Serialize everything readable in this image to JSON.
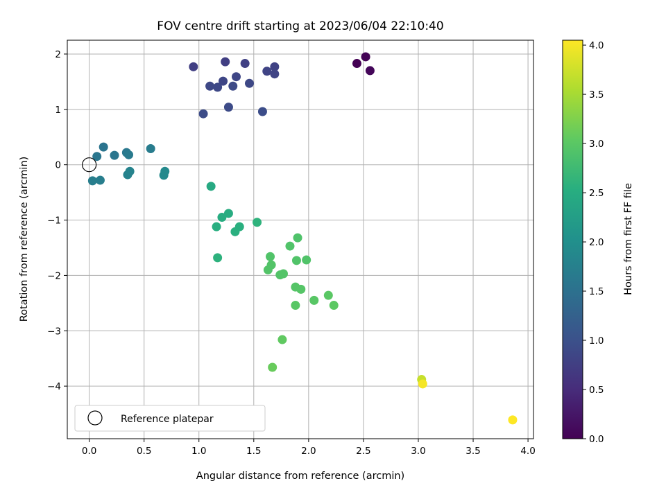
{
  "chart_data": {
    "type": "scatter",
    "title": "FOV centre drift starting at 2023/06/04 22:10:40",
    "xlabel": "Angular distance from reference (arcmin)",
    "ylabel": "Rotation from reference (arcmin)",
    "xlim": [
      -0.2,
      4.05
    ],
    "ylim": [
      -4.95,
      2.25
    ],
    "xticks": [
      0.0,
      0.5,
      1.0,
      1.5,
      2.0,
      2.5,
      3.0,
      3.5,
      4.0
    ],
    "xtick_labels": [
      "0.0",
      "0.5",
      "1.0",
      "1.5",
      "2.0",
      "2.5",
      "3.0",
      "3.5",
      "4.0"
    ],
    "yticks": [
      2,
      1,
      0,
      -1,
      -2,
      -3,
      -4
    ],
    "ytick_labels": [
      "2",
      "1",
      "0",
      "−1",
      "−2",
      "−3",
      "−4"
    ],
    "grid": true,
    "legend": {
      "placement": "lower-left",
      "entries": [
        "Reference platepar"
      ]
    },
    "reference_point": {
      "x": 0.0,
      "y": 0.0
    },
    "colorbar": {
      "label": "Hours from first FF file",
      "range": [
        0.0,
        4.05
      ],
      "ticks": [
        0.0,
        0.5,
        1.0,
        1.5,
        2.0,
        2.5,
        3.0,
        3.5,
        4.0
      ],
      "tick_labels": [
        "0.0",
        "0.5",
        "1.0",
        "1.5",
        "2.0",
        "2.5",
        "3.0",
        "3.5",
        "4.0"
      ],
      "colormap": "viridis"
    },
    "points": [
      {
        "x": 2.44,
        "y": 1.83,
        "h": 0.0
      },
      {
        "x": 2.52,
        "y": 1.95,
        "h": 0.03
      },
      {
        "x": 2.56,
        "y": 1.7,
        "h": 0.06
      },
      {
        "x": 0.95,
        "y": 1.77,
        "h": 0.75
      },
      {
        "x": 1.24,
        "y": 1.86,
        "h": 0.75
      },
      {
        "x": 1.42,
        "y": 1.83,
        "h": 0.78
      },
      {
        "x": 1.69,
        "y": 1.77,
        "h": 0.8
      },
      {
        "x": 1.62,
        "y": 1.69,
        "h": 0.82
      },
      {
        "x": 1.69,
        "y": 1.64,
        "h": 0.82
      },
      {
        "x": 1.34,
        "y": 1.59,
        "h": 0.85
      },
      {
        "x": 1.22,
        "y": 1.51,
        "h": 0.85
      },
      {
        "x": 1.46,
        "y": 1.47,
        "h": 0.87
      },
      {
        "x": 1.1,
        "y": 1.42,
        "h": 0.87
      },
      {
        "x": 1.17,
        "y": 1.4,
        "h": 0.88
      },
      {
        "x": 1.31,
        "y": 1.42,
        "h": 0.9
      },
      {
        "x": 1.27,
        "y": 1.04,
        "h": 0.92
      },
      {
        "x": 1.04,
        "y": 0.92,
        "h": 0.93
      },
      {
        "x": 1.58,
        "y": 0.96,
        "h": 0.95
      },
      {
        "x": 0.13,
        "y": 0.32,
        "h": 1.55
      },
      {
        "x": 0.07,
        "y": 0.15,
        "h": 1.58
      },
      {
        "x": 0.23,
        "y": 0.17,
        "h": 1.58
      },
      {
        "x": 0.34,
        "y": 0.22,
        "h": 1.62
      },
      {
        "x": 0.36,
        "y": 0.18,
        "h": 1.65
      },
      {
        "x": 0.56,
        "y": 0.29,
        "h": 1.68
      },
      {
        "x": 0.03,
        "y": -0.29,
        "h": 1.72
      },
      {
        "x": 0.1,
        "y": -0.28,
        "h": 1.72
      },
      {
        "x": 0.35,
        "y": -0.18,
        "h": 1.78
      },
      {
        "x": 0.37,
        "y": -0.12,
        "h": 1.8
      },
      {
        "x": 0.69,
        "y": -0.12,
        "h": 1.9
      },
      {
        "x": 0.68,
        "y": -0.19,
        "h": 1.9
      },
      {
        "x": 1.11,
        "y": -0.39,
        "h": 2.45
      },
      {
        "x": 1.27,
        "y": -0.88,
        "h": 2.5
      },
      {
        "x": 1.21,
        "y": -0.95,
        "h": 2.5
      },
      {
        "x": 1.16,
        "y": -1.12,
        "h": 2.53
      },
      {
        "x": 1.37,
        "y": -1.12,
        "h": 2.55
      },
      {
        "x": 1.33,
        "y": -1.21,
        "h": 2.55
      },
      {
        "x": 1.53,
        "y": -1.04,
        "h": 2.6
      },
      {
        "x": 1.17,
        "y": -1.68,
        "h": 2.58
      },
      {
        "x": 1.9,
        "y": -1.32,
        "h": 2.9
      },
      {
        "x": 1.83,
        "y": -1.47,
        "h": 2.92
      },
      {
        "x": 1.65,
        "y": -1.66,
        "h": 2.92
      },
      {
        "x": 1.89,
        "y": -1.73,
        "h": 2.92
      },
      {
        "x": 1.98,
        "y": -1.72,
        "h": 2.92
      },
      {
        "x": 1.66,
        "y": -1.81,
        "h": 2.93
      },
      {
        "x": 1.63,
        "y": -1.9,
        "h": 2.93
      },
      {
        "x": 1.74,
        "y": -1.99,
        "h": 2.93
      },
      {
        "x": 1.77,
        "y": -1.97,
        "h": 2.94
      },
      {
        "x": 1.88,
        "y": -2.21,
        "h": 2.95
      },
      {
        "x": 1.93,
        "y": -2.25,
        "h": 2.96
      },
      {
        "x": 2.05,
        "y": -2.45,
        "h": 2.98
      },
      {
        "x": 1.88,
        "y": -2.54,
        "h": 2.98
      },
      {
        "x": 2.18,
        "y": -2.36,
        "h": 3.0
      },
      {
        "x": 2.23,
        "y": -2.54,
        "h": 3.02
      },
      {
        "x": 1.76,
        "y": -3.16,
        "h": 3.05
      },
      {
        "x": 1.67,
        "y": -3.66,
        "h": 3.1
      },
      {
        "x": 3.03,
        "y": -3.88,
        "h": 3.7
      },
      {
        "x": 3.04,
        "y": -3.96,
        "h": 4.0
      },
      {
        "x": 3.86,
        "y": -4.61,
        "h": 4.05
      }
    ]
  }
}
